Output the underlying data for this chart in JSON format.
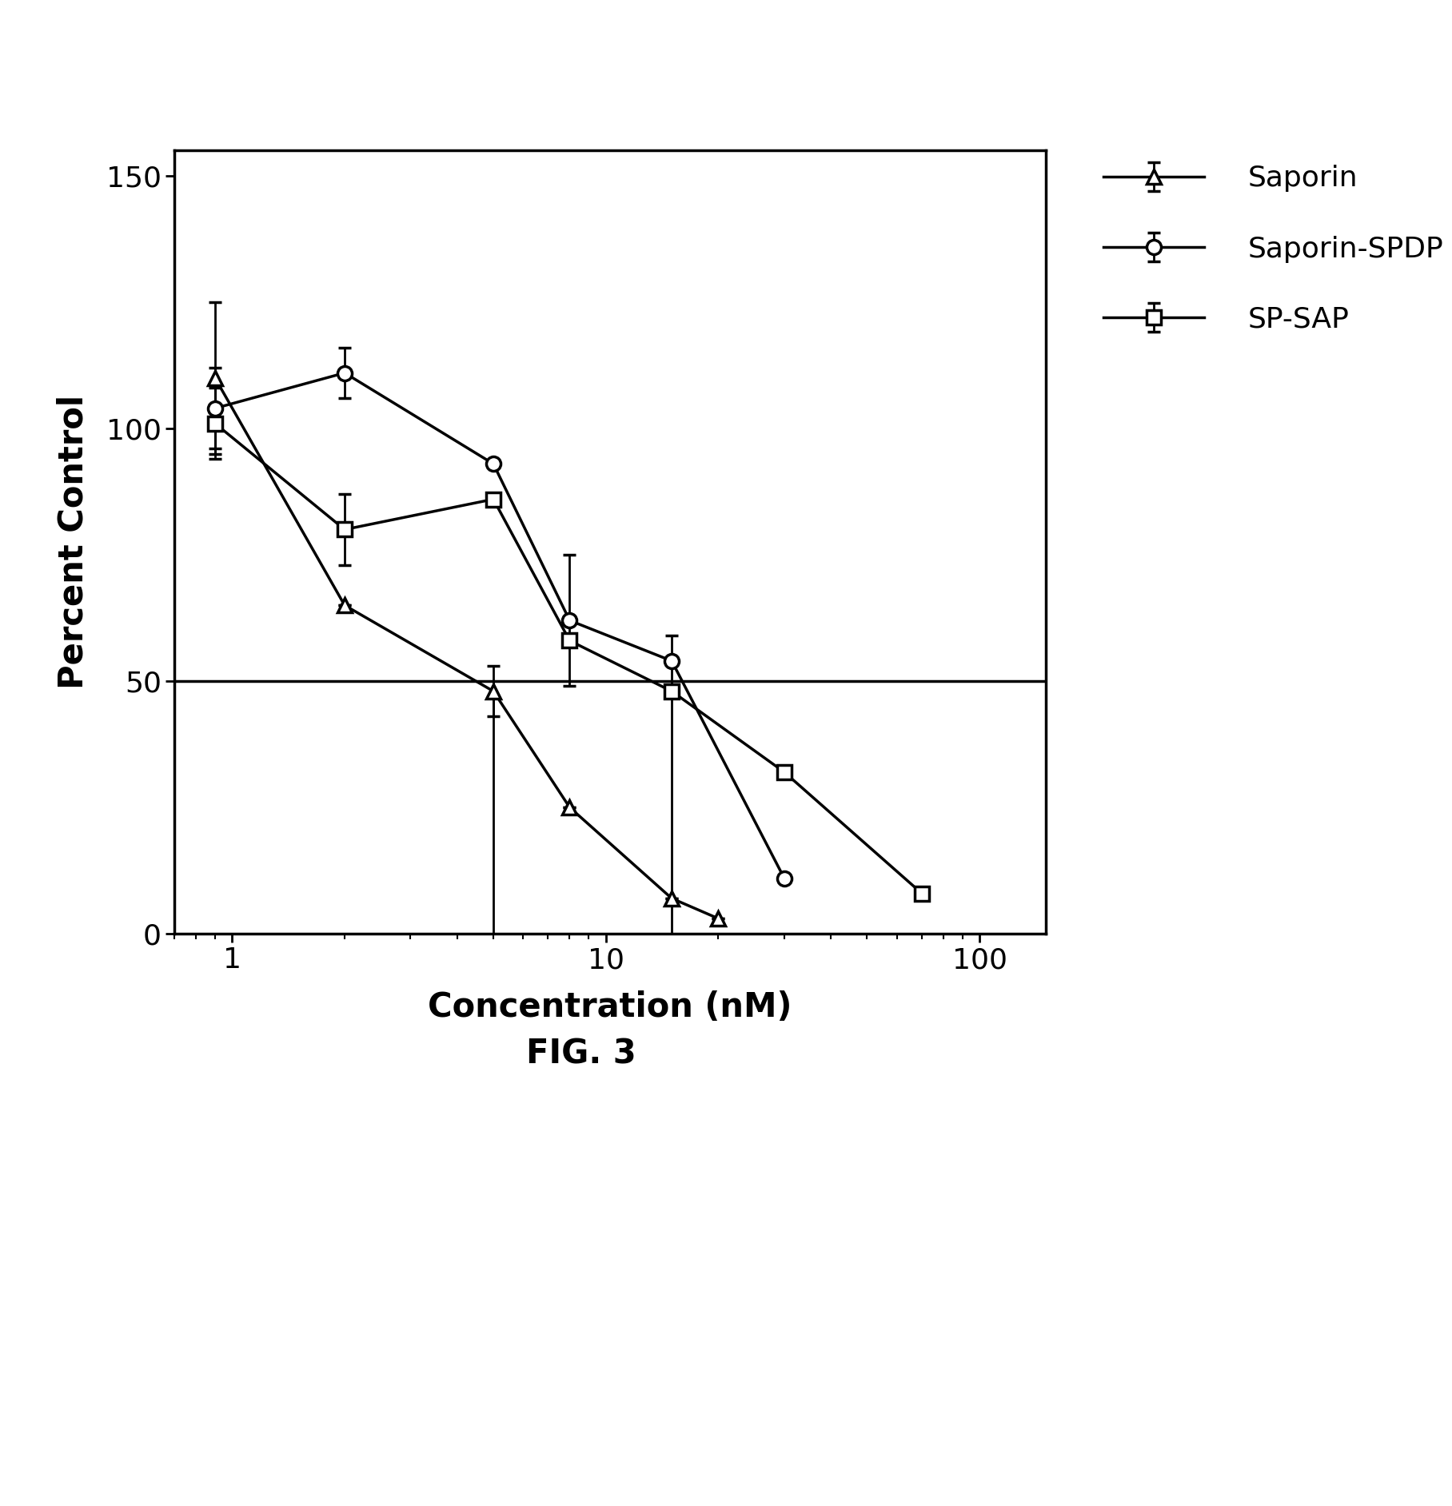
{
  "title": "FIG. 3",
  "xlabel": "Concentration (nM)",
  "ylabel": "Percent Control",
  "xlim": [
    0.7,
    150
  ],
  "ylim": [
    0,
    155
  ],
  "yticks": [
    0,
    50,
    100,
    150
  ],
  "hline_y": 50,
  "saporin": {
    "x": [
      0.9,
      2.0,
      5.0,
      8.0,
      15.0,
      20.0
    ],
    "y": [
      110,
      65,
      48,
      25,
      7,
      3
    ],
    "yerr": [
      15,
      0,
      5,
      0,
      0,
      0
    ],
    "label": "Saporin"
  },
  "saporin_spdp": {
    "x": [
      0.9,
      2.0,
      5.0,
      8.0,
      15.0,
      30.0
    ],
    "y": [
      104,
      111,
      93,
      62,
      54,
      11
    ],
    "yerr": [
      8,
      5,
      0,
      13,
      5,
      0
    ],
    "label": "Saporin-SPDP"
  },
  "sp_sap": {
    "x": [
      0.9,
      2.0,
      5.0,
      8.0,
      15.0,
      30.0,
      70.0
    ],
    "y": [
      101,
      80,
      86,
      58,
      48,
      32,
      8
    ],
    "yerr": [
      7,
      7,
      0,
      0,
      0,
      0,
      0
    ],
    "label": "SP-SAP"
  },
  "ic50_saporin_x": 5.0,
  "ic50_spsap_x": 15.0,
  "background_color": "#ffffff",
  "line_color": "#000000",
  "linewidth": 2.5,
  "markersize": 13,
  "fontsize_ticks": 26,
  "fontsize_label": 30,
  "fontsize_legend": 26,
  "fontsize_title": 30
}
